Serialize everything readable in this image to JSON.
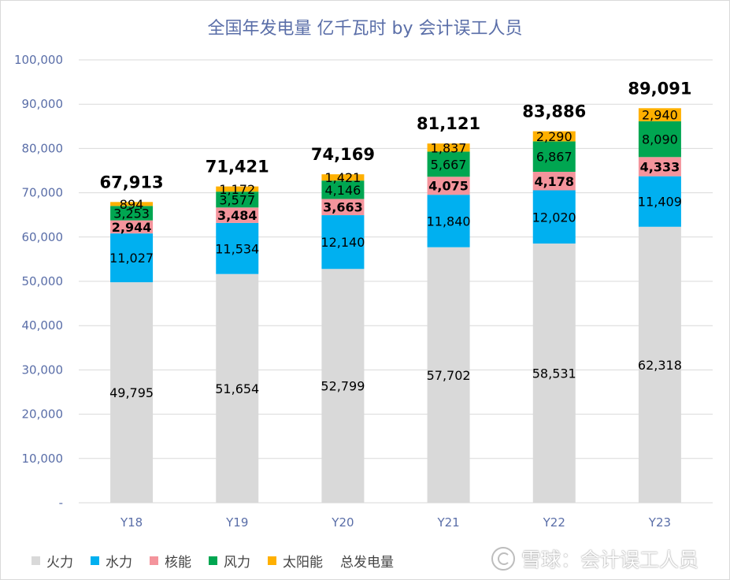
{
  "chart_data": {
    "type": "bar",
    "stacked": true,
    "title": "全国年发电量 亿千瓦时 by 会计误工人员",
    "categories": [
      "Y18",
      "Y19",
      "Y20",
      "Y21",
      "Y22",
      "Y23"
    ],
    "y_ticks": [
      "-",
      "10,000",
      "20,000",
      "30,000",
      "40,000",
      "50,000",
      "60,000",
      "70,000",
      "80,000",
      "90,000",
      "100,000"
    ],
    "ylim": [
      0,
      100000
    ],
    "grid": true,
    "legend_position": "bottom-left",
    "series": [
      {
        "name": "火力",
        "color": "#d9d9d9",
        "values": [
          49795,
          51654,
          52799,
          57702,
          58531,
          62318
        ],
        "labels": [
          "49,795",
          "51,654",
          "52,799",
          "57,702",
          "58,531",
          "62,318"
        ],
        "label_color": "#000000",
        "label_bold": false
      },
      {
        "name": "水力",
        "color": "#00b0f0",
        "values": [
          11027,
          11534,
          12140,
          11840,
          12020,
          11409
        ],
        "labels": [
          "11,027",
          "11,534",
          "12,140",
          "11,840",
          "12,020",
          "11,409"
        ],
        "label_color": "#000000",
        "label_bold": false
      },
      {
        "name": "核能",
        "color": "#f4949c",
        "values": [
          2944,
          3484,
          3663,
          4075,
          4178,
          4333
        ],
        "labels": [
          "2,944",
          "3,484",
          "3,663",
          "4,075",
          "4,178",
          "4,333"
        ],
        "label_color": "#000000",
        "label_bold": true
      },
      {
        "name": "风力",
        "color": "#00a651",
        "values": [
          3253,
          3577,
          4146,
          5667,
          6867,
          8090
        ],
        "labels": [
          "3,253",
          "3,577",
          "4,146",
          "5,667",
          "6,867",
          "8,090"
        ],
        "label_color": "#000000",
        "label_bold": false
      },
      {
        "name": "太阳能",
        "color": "#ffb000",
        "values": [
          894,
          1172,
          1421,
          1837,
          2290,
          2940
        ],
        "labels": [
          "894",
          "1,172",
          "1,421",
          "1,837",
          "2,290",
          "2,940"
        ],
        "label_color": "#000000",
        "label_bold": false
      }
    ],
    "total": {
      "name": "总发电量",
      "values": [
        67913,
        71421,
        74169,
        81121,
        83886,
        89091
      ],
      "labels": [
        "67,913",
        "71,421",
        "74,169",
        "81,121",
        "83,886",
        "89,091"
      ]
    }
  },
  "watermark": {
    "text": "雪球：会计误工人员"
  },
  "colors": {
    "title": "#5a6ea8",
    "axis_text": "#5a6ea8",
    "grid": "#d9d9d9"
  }
}
